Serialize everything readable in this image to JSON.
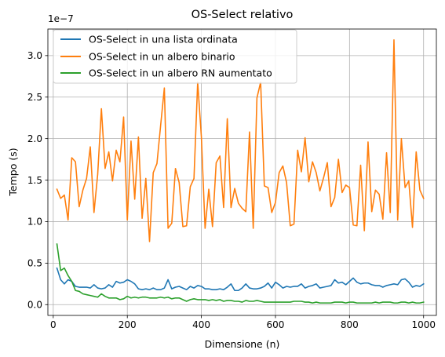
{
  "chart_data": {
    "type": "line",
    "title": "OS-Select relativo",
    "xlabel": "Dimensione (n)",
    "ylabel": "Tempo (s)",
    "y_offset_label": "1e−7",
    "y_scale_factor": 1e-07,
    "xlim": [
      -14.5,
      1034.5
    ],
    "ylim": [
      -0.13,
      3.32
    ],
    "x_ticks": [
      0,
      200,
      400,
      600,
      800,
      1000
    ],
    "x_tick_labels": [
      "0",
      "200",
      "400",
      "600",
      "800",
      "1000"
    ],
    "y_ticks": [
      0.0,
      0.5,
      1.0,
      1.5,
      2.0,
      2.5,
      3.0
    ],
    "y_tick_labels": [
      "0.0",
      "0.5",
      "1.0",
      "1.5",
      "2.0",
      "2.5",
      "3.0"
    ],
    "grid": true,
    "legend_position": "top-left",
    "x": [
      10,
      20,
      30,
      40,
      50,
      60,
      70,
      80,
      90,
      100,
      110,
      120,
      130,
      140,
      150,
      160,
      170,
      180,
      190,
      200,
      210,
      220,
      230,
      240,
      250,
      260,
      270,
      280,
      290,
      300,
      310,
      320,
      330,
      340,
      350,
      360,
      370,
      380,
      390,
      400,
      410,
      420,
      430,
      440,
      450,
      460,
      470,
      480,
      490,
      500,
      510,
      520,
      530,
      540,
      550,
      560,
      570,
      580,
      590,
      600,
      610,
      620,
      630,
      640,
      650,
      660,
      670,
      680,
      690,
      700,
      710,
      720,
      730,
      740,
      750,
      760,
      770,
      780,
      790,
      800,
      810,
      820,
      830,
      840,
      850,
      860,
      870,
      880,
      890,
      900,
      910,
      920,
      930,
      940,
      950,
      960,
      970,
      980,
      990,
      1000
    ],
    "series": [
      {
        "name": "OS-Select in una lista ordinata",
        "color": "#1f77b4",
        "values": [
          0.44,
          0.3,
          0.25,
          0.3,
          0.28,
          0.22,
          0.21,
          0.21,
          0.21,
          0.2,
          0.24,
          0.2,
          0.19,
          0.2,
          0.24,
          0.21,
          0.28,
          0.26,
          0.27,
          0.3,
          0.28,
          0.25,
          0.19,
          0.18,
          0.19,
          0.18,
          0.2,
          0.18,
          0.18,
          0.2,
          0.3,
          0.19,
          0.21,
          0.22,
          0.2,
          0.18,
          0.22,
          0.2,
          0.23,
          0.22,
          0.19,
          0.19,
          0.18,
          0.18,
          0.19,
          0.18,
          0.21,
          0.25,
          0.17,
          0.17,
          0.2,
          0.25,
          0.2,
          0.19,
          0.19,
          0.2,
          0.22,
          0.26,
          0.2,
          0.27,
          0.24,
          0.2,
          0.22,
          0.21,
          0.22,
          0.22,
          0.25,
          0.2,
          0.22,
          0.23,
          0.25,
          0.2,
          0.21,
          0.22,
          0.23,
          0.3,
          0.26,
          0.27,
          0.24,
          0.28,
          0.32,
          0.27,
          0.25,
          0.26,
          0.26,
          0.24,
          0.23,
          0.23,
          0.21,
          0.23,
          0.24,
          0.25,
          0.24,
          0.3,
          0.31,
          0.27,
          0.21,
          0.23,
          0.22,
          0.25
        ]
      },
      {
        "name": "OS-Select in un albero binario",
        "color": "#ff7f0e",
        "values": [
          1.39,
          1.28,
          1.32,
          1.02,
          1.77,
          1.72,
          1.18,
          1.38,
          1.52,
          1.9,
          1.11,
          1.57,
          2.36,
          1.64,
          1.84,
          1.49,
          1.86,
          1.72,
          2.26,
          1.02,
          1.97,
          1.27,
          2.02,
          1.04,
          1.52,
          0.76,
          1.59,
          1.7,
          2.16,
          2.61,
          0.92,
          0.98,
          1.64,
          1.47,
          0.94,
          0.95,
          1.42,
          1.52,
          2.68,
          2.02,
          0.92,
          1.39,
          0.94,
          1.71,
          1.79,
          1.17,
          2.24,
          1.17,
          1.4,
          1.22,
          1.16,
          1.12,
          2.08,
          0.92,
          2.49,
          2.68,
          1.43,
          1.41,
          1.11,
          1.23,
          1.59,
          1.67,
          1.47,
          0.95,
          0.97,
          1.86,
          1.6,
          2.01,
          1.48,
          1.72,
          1.59,
          1.37,
          1.53,
          1.71,
          1.18,
          1.29,
          1.75,
          1.35,
          1.44,
          1.41,
          0.96,
          0.95,
          1.68,
          0.89,
          1.96,
          1.12,
          1.38,
          1.33,
          1.03,
          1.83,
          1.11,
          3.19,
          1.02,
          2.0,
          1.41,
          1.49,
          0.93,
          1.84,
          1.38,
          1.28
        ]
      },
      {
        "name": "OS-Select in un albero RN aumentato",
        "color": "#2ca02c",
        "values": [
          0.73,
          0.41,
          0.44,
          0.35,
          0.28,
          0.17,
          0.16,
          0.13,
          0.12,
          0.11,
          0.1,
          0.09,
          0.13,
          0.1,
          0.08,
          0.08,
          0.08,
          0.06,
          0.07,
          0.1,
          0.08,
          0.09,
          0.08,
          0.09,
          0.09,
          0.08,
          0.08,
          0.08,
          0.09,
          0.08,
          0.09,
          0.07,
          0.08,
          0.08,
          0.06,
          0.04,
          0.06,
          0.07,
          0.06,
          0.06,
          0.06,
          0.05,
          0.06,
          0.05,
          0.06,
          0.04,
          0.05,
          0.05,
          0.04,
          0.04,
          0.03,
          0.05,
          0.04,
          0.04,
          0.05,
          0.04,
          0.03,
          0.03,
          0.03,
          0.03,
          0.03,
          0.03,
          0.03,
          0.03,
          0.04,
          0.04,
          0.04,
          0.03,
          0.03,
          0.02,
          0.03,
          0.02,
          0.02,
          0.02,
          0.02,
          0.03,
          0.03,
          0.03,
          0.02,
          0.03,
          0.03,
          0.02,
          0.02,
          0.02,
          0.02,
          0.02,
          0.03,
          0.02,
          0.03,
          0.03,
          0.03,
          0.02,
          0.02,
          0.03,
          0.03,
          0.02,
          0.03,
          0.02,
          0.02,
          0.03
        ]
      }
    ]
  }
}
